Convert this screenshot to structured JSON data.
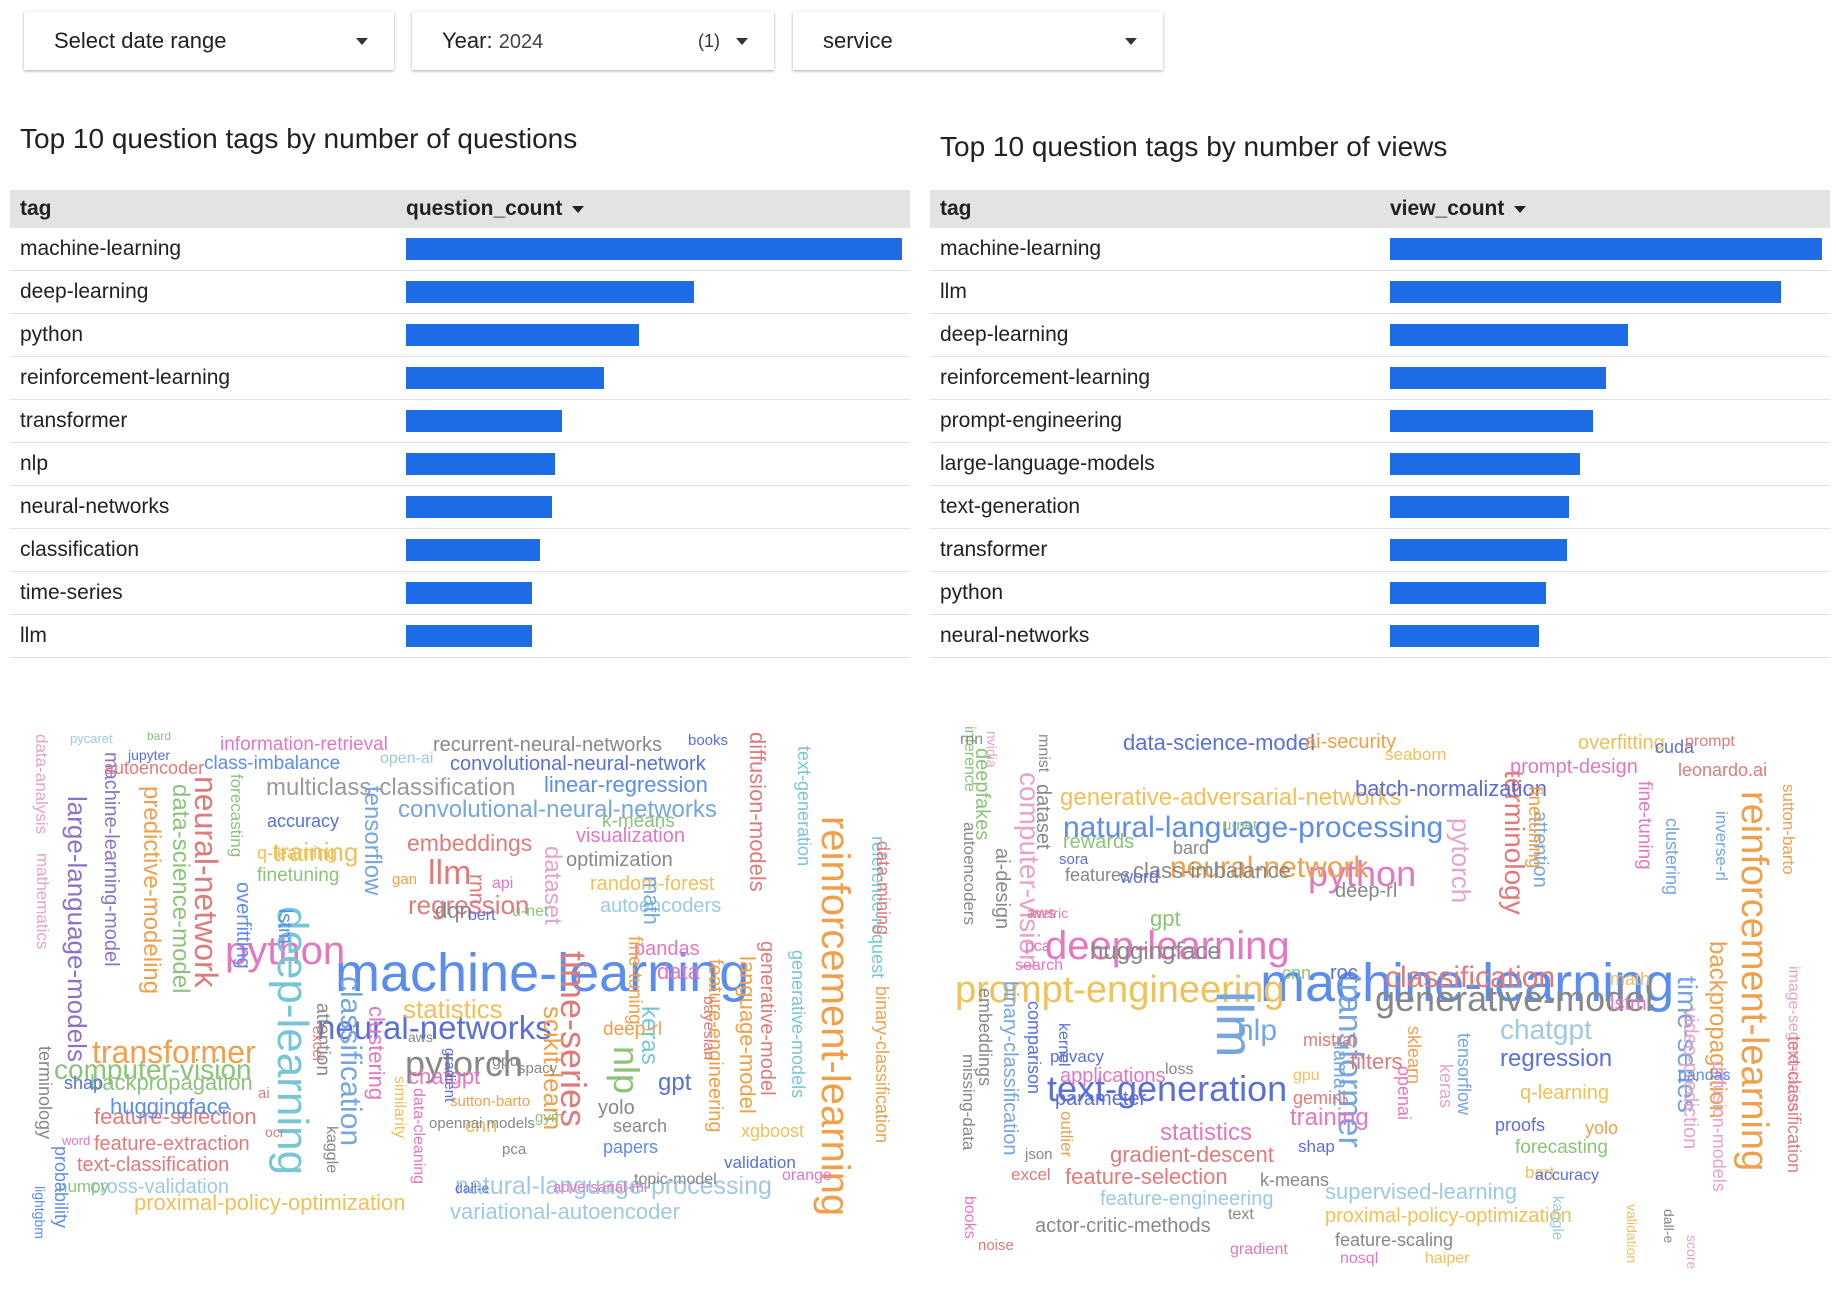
{
  "filters": {
    "date_range": {
      "label": "Select date range"
    },
    "year": {
      "label": "Year:",
      "value": "2024",
      "count": "(1)"
    },
    "service": {
      "label": "service"
    }
  },
  "left_chart": {
    "title": "Top 10 question tags by number of questions",
    "columns": [
      "tag",
      "question_count"
    ],
    "chart_data": {
      "type": "table",
      "categories": [
        "machine-learning",
        "deep-learning",
        "python",
        "reinforcement-learning",
        "transformer",
        "nlp",
        "neural-networks",
        "classification",
        "time-series",
        "llm"
      ],
      "values": [
        1.0,
        0.58,
        0.47,
        0.4,
        0.315,
        0.3,
        0.295,
        0.27,
        0.255,
        0.255
      ]
    }
  },
  "right_chart": {
    "title": "Top 10 question tags by number of views",
    "columns": [
      "tag",
      "view_count"
    ],
    "chart_data": {
      "type": "table",
      "categories": [
        "machine-learning",
        "llm",
        "deep-learning",
        "reinforcement-learning",
        "prompt-engineering",
        "large-language-models",
        "text-generation",
        "transformer",
        "python",
        "neural-networks"
      ],
      "values": [
        1.0,
        0.905,
        0.55,
        0.5,
        0.47,
        0.44,
        0.415,
        0.41,
        0.36,
        0.345
      ]
    }
  },
  "left_cloud": {
    "words": [
      {
        "t": "machine-learning",
        "c": "#5b8def"
      },
      {
        "t": "python",
        "c": "#e377c2"
      },
      {
        "t": "deep-learning",
        "c": "#76c6d6"
      },
      {
        "t": "neural-networks",
        "c": "#5b6fd9"
      },
      {
        "t": "transformer",
        "c": "#f0a04b"
      },
      {
        "t": "reinforcement-learning",
        "c": "#f0a04b"
      },
      {
        "t": "neural-network",
        "c": "#e07b7b"
      },
      {
        "t": "classification",
        "c": "#76a6e0"
      },
      {
        "t": "time-series",
        "c": "#e07b7b"
      },
      {
        "t": "computer-vision",
        "c": "#8cc37a"
      },
      {
        "t": "convolutional-neural-networks",
        "c": "#76a6e0"
      },
      {
        "t": "large-language-models",
        "c": "#8b74c8"
      },
      {
        "t": "llm",
        "c": "#e07b7b"
      },
      {
        "t": "pytorch",
        "c": "#888888"
      },
      {
        "t": "multiclass-classification",
        "c": "#999999"
      },
      {
        "t": "natural-language-processing",
        "c": "#9ecae1"
      },
      {
        "t": "data-science-model",
        "c": "#8cc37a"
      },
      {
        "t": "regression",
        "c": "#e07b7b"
      },
      {
        "t": "training",
        "c": "#f0c05a"
      },
      {
        "t": "statistics",
        "c": "#f0c05a"
      },
      {
        "t": "scikit-learn",
        "c": "#f0a04b"
      },
      {
        "t": "embeddings",
        "c": "#e07b7b"
      },
      {
        "t": "convolutional-neural-network",
        "c": "#5b6fd9"
      },
      {
        "t": "recurrent-neural-networks",
        "c": "#888888"
      },
      {
        "t": "variational-autoencoder",
        "c": "#9ecae1"
      },
      {
        "t": "predictive-modeling",
        "c": "#f0a04b"
      },
      {
        "t": "feature-selection",
        "c": "#e07b7b"
      },
      {
        "t": "feature-extraction",
        "c": "#e07b7b"
      },
      {
        "t": "backpropagation",
        "c": "#8cc37a"
      },
      {
        "t": "huggingface",
        "c": "#5b8def"
      },
      {
        "t": "information-retrieval",
        "c": "#e377c2"
      },
      {
        "t": "class-imbalance",
        "c": "#5b8def"
      },
      {
        "t": "dataset",
        "c": "#e7a3c9"
      },
      {
        "t": "tensorflow",
        "c": "#76a6e0"
      },
      {
        "t": "nlp",
        "c": "#8cc37a"
      },
      {
        "t": "keras",
        "c": "#76c6d6"
      },
      {
        "t": "gpt",
        "c": "#5b6fd9"
      },
      {
        "t": "chatgpt",
        "c": "#e377c2"
      },
      {
        "t": "clustering",
        "c": "#e377c2"
      },
      {
        "t": "diffusion-models",
        "c": "#e07b7b"
      },
      {
        "t": "language-model",
        "c": "#f0a04b"
      },
      {
        "t": "generative-model",
        "c": "#e07b7b"
      },
      {
        "t": "proximal-policy-optimization",
        "c": "#f0c05a"
      },
      {
        "t": "text-classification",
        "c": "#e07b7b"
      },
      {
        "t": "cross-validation",
        "c": "#9ecae1"
      },
      {
        "t": "linear-regression",
        "c": "#5b8def"
      },
      {
        "t": "visualization",
        "c": "#e377c2"
      },
      {
        "t": "optimization",
        "c": "#888888"
      },
      {
        "t": "random-forest",
        "c": "#f0c05a"
      },
      {
        "t": "k-means",
        "c": "#8cc37a"
      },
      {
        "t": "autoencoders",
        "c": "#9ecae1"
      },
      {
        "t": "data",
        "c": "#e377c2"
      },
      {
        "t": "pandas",
        "c": "#e377c2"
      },
      {
        "t": "feature-engineering",
        "c": "#f0a04b"
      },
      {
        "t": "generative-models",
        "c": "#76c6d6"
      },
      {
        "t": "binary-classification",
        "c": "#f0a04b"
      },
      {
        "t": "machine-learning-model",
        "c": "#8b74c8"
      },
      {
        "t": "data-analysis",
        "c": "#e7a3c9"
      },
      {
        "t": "mathematics",
        "c": "#e7a3c9"
      },
      {
        "t": "text-generation",
        "c": "#76c6d6"
      },
      {
        "t": "reference-request",
        "c": "#76c6d6"
      },
      {
        "t": "data-mining",
        "c": "#e07b7b"
      },
      {
        "t": "finetuning",
        "c": "#8cc37a"
      },
      {
        "t": "q-learning",
        "c": "#f0c05a"
      },
      {
        "t": "forecasting",
        "c": "#8cc37a"
      },
      {
        "t": "accuracy",
        "c": "#5b6fd9"
      },
      {
        "t": "autoencoder",
        "c": "#e07b7b"
      },
      {
        "t": "fine-tuning",
        "c": "#f0a04b"
      },
      {
        "t": "math",
        "c": "#76a6e0"
      },
      {
        "t": "deep-rl",
        "c": "#f0a04b"
      },
      {
        "t": "xgboost",
        "c": "#f0c05a"
      },
      {
        "t": "papers",
        "c": "#5b8def"
      },
      {
        "t": "validation",
        "c": "#5b6fd9"
      },
      {
        "t": "topic-model",
        "c": "#888888"
      },
      {
        "t": "adversarial-ml",
        "c": "#e377c2"
      },
      {
        "t": "orange",
        "c": "#e377c2"
      },
      {
        "t": "numpy",
        "c": "#8cc37a"
      },
      {
        "t": "attention",
        "c": "#888888"
      },
      {
        "t": "kaggle",
        "c": "#888888"
      },
      {
        "t": "lstm",
        "c": "#5b8def"
      },
      {
        "t": "overfitting",
        "c": "#5b8def"
      },
      {
        "t": "terminology",
        "c": "#888888"
      },
      {
        "t": "probability",
        "c": "#5b8def"
      },
      {
        "t": "shap",
        "c": "#5b6fd9"
      },
      {
        "t": "yolo",
        "c": "#888888"
      },
      {
        "t": "search",
        "c": "#888888"
      },
      {
        "t": "cnn",
        "c": "#f0c05a"
      },
      {
        "t": "gpu",
        "c": "#888888"
      },
      {
        "t": "aws",
        "c": "#888888"
      },
      {
        "t": "dqn",
        "c": "#888888"
      },
      {
        "t": "bert",
        "c": "#5b6fd9"
      },
      {
        "t": "u-net",
        "c": "#8cc37a"
      },
      {
        "t": "rnn",
        "c": "#e07b7b"
      },
      {
        "t": "api",
        "c": "#e377c2"
      },
      {
        "t": "gan",
        "c": "#f0a04b"
      },
      {
        "t": "books",
        "c": "#5b6fd9"
      },
      {
        "t": "open-ai",
        "c": "#9ecae1"
      },
      {
        "t": "jupyter",
        "c": "#5b6fd9"
      },
      {
        "t": "pycaret",
        "c": "#9ecae1"
      },
      {
        "t": "bard",
        "c": "#8cc37a"
      },
      {
        "t": "spacy",
        "c": "#888888"
      },
      {
        "t": "bayesian",
        "c": "#e07b7b"
      },
      {
        "t": "pca",
        "c": "#888888"
      },
      {
        "t": "gym",
        "c": "#8cc37a"
      },
      {
        "t": "similarity",
        "c": "#f0c05a"
      },
      {
        "t": "data-cleaning",
        "c": "#e377c2"
      },
      {
        "t": "opennai models",
        "c": "#888888"
      },
      {
        "t": "gradient",
        "c": "#5b6fd9"
      },
      {
        "t": "sutton-barto",
        "c": "#f0a04b"
      },
      {
        "t": "excel",
        "c": "#e07b7b"
      },
      {
        "t": "dall-e",
        "c": "#5b6fd9"
      },
      {
        "t": "lightgbm",
        "c": "#5b8def"
      },
      {
        "t": "word",
        "c": "#e377c2"
      },
      {
        "t": "ocr",
        "c": "#e07b7b"
      },
      {
        "t": "ai",
        "c": "#e07b7b"
      }
    ]
  },
  "right_cloud": {
    "words": [
      {
        "t": "machine-learning",
        "c": "#5b8def"
      },
      {
        "t": "deep-learning",
        "c": "#e377c2"
      },
      {
        "t": "prompt-engineering",
        "c": "#f0c05a"
      },
      {
        "t": "natural-language-processing",
        "c": "#5b8def"
      },
      {
        "t": "text-generation",
        "c": "#5b6fd9"
      },
      {
        "t": "llm",
        "c": "#76a6e0"
      },
      {
        "t": "generative-model",
        "c": "#888888"
      },
      {
        "t": "transformer",
        "c": "#76a6e0"
      },
      {
        "t": "python",
        "c": "#e377c2"
      },
      {
        "t": "neural-network",
        "c": "#f0a04b"
      },
      {
        "t": "reinforcement-learning",
        "c": "#f0a04b"
      },
      {
        "t": "classification",
        "c": "#e07b7b"
      },
      {
        "t": "computer-vision",
        "c": "#e7a3c9"
      },
      {
        "t": "terminology",
        "c": "#e07b7b"
      },
      {
        "t": "generative-adversarial-networks",
        "c": "#f0c05a"
      },
      {
        "t": "data-science-model",
        "c": "#5b6fd9"
      },
      {
        "t": "ai-security",
        "c": "#f0a04b"
      },
      {
        "t": "huggingface",
        "c": "#888888"
      },
      {
        "t": "class-imbalance",
        "c": "#888888"
      },
      {
        "t": "nlp",
        "c": "#76a6e0"
      },
      {
        "t": "chatgpt",
        "c": "#9ecae1"
      },
      {
        "t": "regression",
        "c": "#5b6fd9"
      },
      {
        "t": "time-series",
        "c": "#76a6e0"
      },
      {
        "t": "backpropagation",
        "c": "#f0a04b"
      },
      {
        "t": "statistics",
        "c": "#e377c2"
      },
      {
        "t": "training",
        "c": "#e377c2"
      },
      {
        "t": "gradient-descent",
        "c": "#e07b7b"
      },
      {
        "t": "feature-selection",
        "c": "#e07b7b"
      },
      {
        "t": "feature-engineering",
        "c": "#9ecae1"
      },
      {
        "t": "actor-critic-methods",
        "c": "#888888"
      },
      {
        "t": "supervised-learning",
        "c": "#9ecae1"
      },
      {
        "t": "proximal-policy-optimization",
        "c": "#f0c05a"
      },
      {
        "t": "feature-scaling",
        "c": "#888888"
      },
      {
        "t": "batch-normalization",
        "c": "#5b6fd9"
      },
      {
        "t": "prompt-design",
        "c": "#e377c2"
      },
      {
        "t": "overfitting",
        "c": "#f0c05a"
      },
      {
        "t": "cuda",
        "c": "#5b6fd9"
      },
      {
        "t": "prompt",
        "c": "#e07b7b"
      },
      {
        "t": "leonardo.ai",
        "c": "#e07b7b"
      },
      {
        "t": "pytorch",
        "c": "#e7a3c9"
      },
      {
        "t": "deep-rl",
        "c": "#888888"
      },
      {
        "t": "rewards",
        "c": "#8cc37a"
      },
      {
        "t": "word",
        "c": "#5b6fd9"
      },
      {
        "t": "features",
        "c": "#888888"
      },
      {
        "t": "gpt",
        "c": "#8cc37a"
      },
      {
        "t": "roc",
        "c": "#5b6fd9"
      },
      {
        "t": "cnn",
        "c": "#8cc37a"
      },
      {
        "t": "applications",
        "c": "#e377c2"
      },
      {
        "t": "parameter",
        "c": "#5b6fd9"
      },
      {
        "t": "lstm",
        "c": "#e377c2"
      },
      {
        "t": "math",
        "c": "#f0c05a"
      },
      {
        "t": "llama-2",
        "c": "#76a6e0"
      },
      {
        "t": "openai",
        "c": "#e377c2"
      },
      {
        "t": "keras",
        "c": "#e7a3c9"
      },
      {
        "t": "sklearn",
        "c": "#f0a04b"
      },
      {
        "t": "tensorflow",
        "c": "#76a6e0"
      },
      {
        "t": "q-learning",
        "c": "#f0c05a"
      },
      {
        "t": "proofs",
        "c": "#5b6fd9"
      },
      {
        "t": "yolo",
        "c": "#f0a04b"
      },
      {
        "t": "forecasting",
        "c": "#8cc37a"
      },
      {
        "t": "bert",
        "c": "#f0c05a"
      },
      {
        "t": "accuracy",
        "c": "#5b6fd9"
      },
      {
        "t": "k-means",
        "c": "#888888"
      },
      {
        "t": "shap",
        "c": "#5b6fd9"
      },
      {
        "t": "dataset",
        "c": "#888888"
      },
      {
        "t": "deepfakes",
        "c": "#8cc37a"
      },
      {
        "t": "ai-design",
        "c": "#888888"
      },
      {
        "t": "autoencoders",
        "c": "#888888"
      },
      {
        "t": "inference",
        "c": "#8cc37a"
      },
      {
        "t": "embeddings",
        "c": "#888888"
      },
      {
        "t": "binary-classification",
        "c": "#76a6e0"
      },
      {
        "t": "comparison",
        "c": "#5b6fd9"
      },
      {
        "t": "missing-data",
        "c": "#888888"
      },
      {
        "t": "books",
        "c": "#e377c2"
      },
      {
        "t": "attention",
        "c": "#76a6e0"
      },
      {
        "t": "finetuning",
        "c": "#f0a04b"
      },
      {
        "t": "fine-tuning",
        "c": "#e377c2"
      },
      {
        "t": "clustering",
        "c": "#76a6e0"
      },
      {
        "t": "inverse-rl",
        "c": "#76a6e0"
      },
      {
        "t": "sutton-barto",
        "c": "#f0a04b"
      },
      {
        "t": "image-segmentation",
        "c": "#e7a3c9"
      },
      {
        "t": "video-prediction",
        "c": "#e7a3c9"
      },
      {
        "t": "diffusion-models",
        "c": "#e7a3c9"
      },
      {
        "t": "text-classification",
        "c": "#e07b7b"
      },
      {
        "t": "pandas",
        "c": "#5b8def"
      },
      {
        "t": "rnn",
        "c": "#888888"
      },
      {
        "t": "mnist",
        "c": "#888888"
      },
      {
        "t": "nvidia",
        "c": "#e7a3c9"
      },
      {
        "t": "aws",
        "c": "#e07b7b"
      },
      {
        "t": "pca",
        "c": "#e377c2"
      },
      {
        "t": "search",
        "c": "#e377c2"
      },
      {
        "t": "metric",
        "c": "#e377c2"
      },
      {
        "t": "privacy",
        "c": "#5b6fd9"
      },
      {
        "t": "outlier",
        "c": "#f0a04b"
      },
      {
        "t": "json",
        "c": "#888888"
      },
      {
        "t": "excel",
        "c": "#e07b7b"
      },
      {
        "t": "noise",
        "c": "#e07b7b"
      },
      {
        "t": "gradient",
        "c": "#e377c2"
      },
      {
        "t": "nosql",
        "c": "#e377c2"
      },
      {
        "t": "haiper",
        "c": "#f0c05a"
      },
      {
        "t": "kaggle",
        "c": "#9ecae1"
      },
      {
        "t": "validation",
        "c": "#f0c05a"
      },
      {
        "t": "dall-e",
        "c": "#888888"
      },
      {
        "t": "score",
        "c": "#e7a3c9"
      },
      {
        "t": "filters",
        "c": "#e07b7b"
      },
      {
        "t": "gemini",
        "c": "#e07b7b"
      },
      {
        "t": "mistral",
        "c": "#e07b7b"
      },
      {
        "t": "gpu",
        "c": "#f0c05a"
      },
      {
        "t": "text",
        "c": "#888888"
      },
      {
        "t": "kernel",
        "c": "#5b6fd9"
      },
      {
        "t": "loss",
        "c": "#888888"
      },
      {
        "t": "bard",
        "c": "#888888"
      },
      {
        "t": "sora",
        "c": "#5b6fd9"
      },
      {
        "t": "u-net",
        "c": "#8cc37a"
      },
      {
        "t": "seaborn",
        "c": "#f0c05a"
      },
      {
        "t": "orange",
        "c": "#5b6fd9"
      },
      {
        "t": "muzero",
        "c": "#888888"
      },
      {
        "t": "data",
        "c": "#9ecae1"
      }
    ]
  }
}
